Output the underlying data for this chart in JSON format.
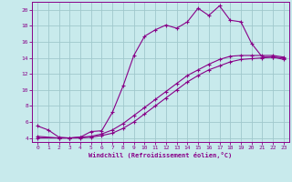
{
  "bg_color": "#c8eaec",
  "grid_color": "#a0c8cc",
  "line_color": "#880088",
  "xlim": [
    -0.5,
    23.5
  ],
  "ylim": [
    3.5,
    21.0
  ],
  "xticks": [
    0,
    1,
    2,
    3,
    4,
    5,
    6,
    7,
    8,
    9,
    10,
    11,
    12,
    13,
    14,
    15,
    16,
    17,
    18,
    19,
    20,
    21,
    22,
    23
  ],
  "yticks": [
    4,
    6,
    8,
    10,
    12,
    14,
    16,
    18,
    20
  ],
  "xlabel": "Windchill (Refroidissement éolien,°C)",
  "curve1_x": [
    0,
    1,
    2,
    3,
    4,
    5,
    6,
    7,
    8,
    9,
    10,
    11,
    12,
    13,
    14,
    15,
    16,
    17,
    18,
    19,
    20,
    21,
    22,
    23
  ],
  "curve1_y": [
    5.5,
    5.0,
    4.1,
    4.0,
    4.1,
    4.8,
    4.9,
    7.2,
    10.5,
    14.3,
    16.7,
    17.5,
    18.1,
    17.7,
    18.5,
    20.2,
    19.3,
    20.5,
    18.7,
    18.5,
    15.8,
    14.1,
    14.1,
    14.0
  ],
  "curve2_x": [
    0,
    2,
    3,
    4,
    5,
    6,
    7,
    8,
    9,
    10,
    11,
    12,
    13,
    14,
    15,
    16,
    17,
    18,
    19,
    20,
    21,
    22,
    23
  ],
  "curve2_y": [
    4.2,
    4.0,
    4.0,
    4.1,
    4.2,
    4.5,
    5.0,
    5.8,
    6.8,
    7.8,
    8.8,
    9.8,
    10.8,
    11.8,
    12.5,
    13.2,
    13.8,
    14.2,
    14.3,
    14.3,
    14.3,
    14.3,
    14.1
  ],
  "curve3_x": [
    0,
    2,
    3,
    4,
    5,
    6,
    7,
    8,
    9,
    10,
    11,
    12,
    13,
    14,
    15,
    16,
    17,
    18,
    19,
    20,
    21,
    22,
    23
  ],
  "curve3_y": [
    4.0,
    4.0,
    4.0,
    4.0,
    4.1,
    4.3,
    4.6,
    5.2,
    6.0,
    7.0,
    8.0,
    9.0,
    10.0,
    11.0,
    11.8,
    12.5,
    13.0,
    13.5,
    13.8,
    13.9,
    14.0,
    14.1,
    13.8
  ]
}
